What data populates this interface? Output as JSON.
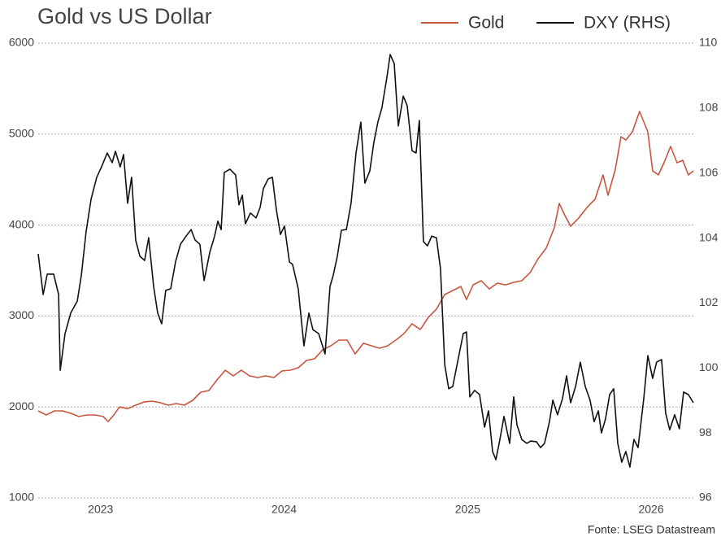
{
  "chart_data": {
    "type": "line",
    "title": "Gold vs US Dollar",
    "source": "Fonte: LSEG Datastream",
    "xlim": [
      2023.16,
      2026.73
    ],
    "xticks": [
      {
        "value": 2023.5,
        "label": "2023"
      },
      {
        "value": 2024.5,
        "label": "2024"
      },
      {
        "value": 2025.5,
        "label": "2025"
      },
      {
        "value": 2026.5,
        "label": "2026"
      }
    ],
    "ylim": [
      1000,
      6000
    ],
    "yticks": [
      1000,
      2000,
      3000,
      4000,
      5000,
      6000
    ],
    "y2lim": [
      96,
      110
    ],
    "y2ticks": [
      96,
      98,
      100,
      102,
      104,
      106,
      108,
      110
    ],
    "grid": true,
    "legend": "top-right",
    "series": [
      {
        "name": "Gold",
        "color": "#c8553d",
        "x": [
          2023.16,
          2023.204,
          2023.249,
          2023.293,
          2023.337,
          2023.381,
          2023.426,
          2023.47,
          2023.514,
          2023.541,
          2023.572,
          2023.603,
          2023.647,
          2023.691,
          2023.736,
          2023.78,
          2023.824,
          2023.869,
          2023.913,
          2023.957,
          2024.002,
          2024.046,
          2024.09,
          2024.134,
          2024.179,
          2024.223,
          2024.267,
          2024.312,
          2024.356,
          2024.4,
          2024.444,
          2024.489,
          2024.533,
          2024.577,
          2024.622,
          2024.666,
          2024.71,
          2024.754,
          2024.799,
          2024.843,
          2024.887,
          2024.932,
          2024.976,
          2025.02,
          2025.064,
          2025.109,
          2025.153,
          2025.197,
          2025.242,
          2025.286,
          2025.33,
          2025.375,
          2025.419,
          2025.463,
          2025.494,
          2025.53,
          2025.574,
          2025.618,
          2025.662,
          2025.707,
          2025.751,
          2025.795,
          2025.84,
          2025.884,
          2025.928,
          2025.972,
          2025.999,
          2026.03,
          2026.061,
          2026.105,
          2026.15,
          2026.194,
          2026.238,
          2026.265,
          2026.305,
          2026.336,
          2026.362,
          2026.398,
          2026.437,
          2026.482,
          2026.508,
          2026.539,
          2026.57,
          2026.606,
          2026.641,
          2026.672,
          2026.703,
          2026.73
        ],
        "values": [
          1957,
          1912,
          1957,
          1957,
          1930,
          1895,
          1912,
          1912,
          1895,
          1840,
          1912,
          2000,
          1982,
          2020,
          2055,
          2064,
          2047,
          2020,
          2038,
          2020,
          2073,
          2163,
          2181,
          2297,
          2404,
          2342,
          2404,
          2342,
          2324,
          2342,
          2324,
          2396,
          2404,
          2431,
          2512,
          2530,
          2628,
          2673,
          2735,
          2735,
          2583,
          2700,
          2673,
          2646,
          2673,
          2735,
          2807,
          2914,
          2852,
          2986,
          3075,
          3236,
          3280,
          3325,
          3182,
          3343,
          3388,
          3298,
          3361,
          3343,
          3370,
          3388,
          3477,
          3630,
          3746,
          3970,
          4238,
          4104,
          3987,
          4077,
          4193,
          4283,
          4551,
          4327,
          4614,
          4971,
          4935,
          5025,
          5249,
          5025,
          4596,
          4551,
          4685,
          4864,
          4685,
          4712,
          4551,
          4596
        ]
      },
      {
        "name": "DXY (RHS)",
        "color": "#111111",
        "axis": "y2",
        "x": [
          2023.16,
          2023.187,
          2023.209,
          2023.244,
          2023.271,
          2023.28,
          2023.306,
          2023.337,
          2023.373,
          2023.395,
          2023.421,
          2023.448,
          2023.479,
          2023.505,
          2023.536,
          2023.563,
          2023.581,
          2023.607,
          2023.625,
          2023.647,
          2023.669,
          2023.691,
          2023.714,
          2023.74,
          2023.762,
          2023.789,
          2023.811,
          2023.833,
          2023.855,
          2023.882,
          2023.908,
          2023.935,
          2023.966,
          2023.993,
          2024.015,
          2024.041,
          2024.064,
          2024.095,
          2024.121,
          2024.139,
          2024.157,
          2024.174,
          2024.205,
          2024.236,
          2024.254,
          2024.272,
          2024.289,
          2024.316,
          2024.347,
          2024.369,
          2024.387,
          2024.413,
          2024.436,
          2024.458,
          2024.48,
          2024.502,
          2024.529,
          2024.546,
          2024.577,
          2024.608,
          2024.635,
          2024.657,
          2024.688,
          2024.723,
          2024.75,
          2024.768,
          2024.79,
          2024.812,
          2024.839,
          2024.865,
          2024.892,
          2024.918,
          2024.94,
          2024.967,
          2024.989,
          2025.011,
          2025.033,
          2025.06,
          2025.078,
          2025.1,
          2025.122,
          2025.149,
          2025.171,
          2025.197,
          2025.219,
          2025.237,
          2025.259,
          2025.281,
          2025.304,
          2025.33,
          2025.352,
          2025.375,
          2025.397,
          2025.419,
          2025.445,
          2025.476,
          2025.494,
          2025.512,
          2025.538,
          2025.565,
          2025.592,
          2025.614,
          2025.636,
          2025.654,
          2025.676,
          2025.698,
          2025.729,
          2025.751,
          2025.769,
          2025.795,
          2025.822,
          2025.844,
          2025.875,
          2025.897,
          2025.919,
          2025.946,
          2025.964,
          2025.99,
          2026.017,
          2026.039,
          2026.061,
          2026.088,
          2026.114,
          2026.141,
          2026.167,
          2026.189,
          2026.212,
          2026.229,
          2026.251,
          2026.274,
          2026.296,
          2026.318,
          2026.34,
          2026.362,
          2026.384,
          2026.406,
          2026.429,
          2026.46,
          2026.482,
          2026.508,
          2026.53,
          2026.557,
          2026.579,
          2026.601,
          2026.628,
          2026.654,
          2026.677,
          2026.703,
          2026.73
        ],
        "values": [
          103.51,
          102.26,
          102.89,
          102.89,
          102.26,
          99.93,
          101.06,
          101.69,
          102.06,
          102.86,
          104.19,
          105.19,
          105.87,
          106.19,
          106.62,
          106.32,
          106.67,
          106.19,
          106.57,
          105.07,
          105.87,
          103.94,
          103.44,
          103.31,
          104.01,
          102.51,
          101.69,
          101.36,
          102.39,
          102.44,
          103.26,
          103.81,
          104.06,
          104.26,
          103.94,
          103.81,
          102.69,
          103.56,
          104.06,
          104.52,
          104.26,
          106.02,
          106.12,
          105.94,
          105.02,
          105.32,
          104.44,
          104.77,
          104.62,
          104.94,
          105.52,
          105.82,
          105.87,
          104.87,
          104.11,
          104.37,
          103.26,
          103.19,
          102.44,
          100.68,
          101.69,
          101.18,
          101.06,
          100.43,
          102.51,
          102.86,
          103.44,
          104.24,
          104.26,
          105.07,
          106.62,
          107.57,
          105.69,
          106.07,
          106.94,
          107.57,
          108.02,
          108.95,
          109.65,
          109.37,
          107.45,
          108.37,
          108.07,
          106.69,
          106.62,
          107.62,
          103.89,
          103.76,
          104.06,
          104.01,
          103.06,
          100.11,
          99.36,
          99.43,
          100.18,
          101.06,
          101.11,
          99.11,
          99.31,
          99.18,
          98.18,
          98.68,
          97.43,
          97.18,
          97.8,
          98.51,
          97.68,
          99.11,
          98.25,
          97.8,
          97.68,
          97.75,
          97.73,
          97.55,
          97.68,
          98.35,
          99.01,
          98.56,
          99.06,
          99.76,
          98.93,
          99.43,
          100.18,
          99.43,
          99.01,
          98.35,
          98.68,
          98.0,
          98.43,
          99.18,
          99.36,
          97.68,
          97.1,
          97.43,
          96.95,
          97.8,
          97.55,
          99.06,
          100.38,
          99.68,
          100.18,
          100.26,
          98.61,
          98.1,
          98.56,
          98.13,
          99.26,
          99.18,
          98.93
        ]
      }
    ]
  }
}
